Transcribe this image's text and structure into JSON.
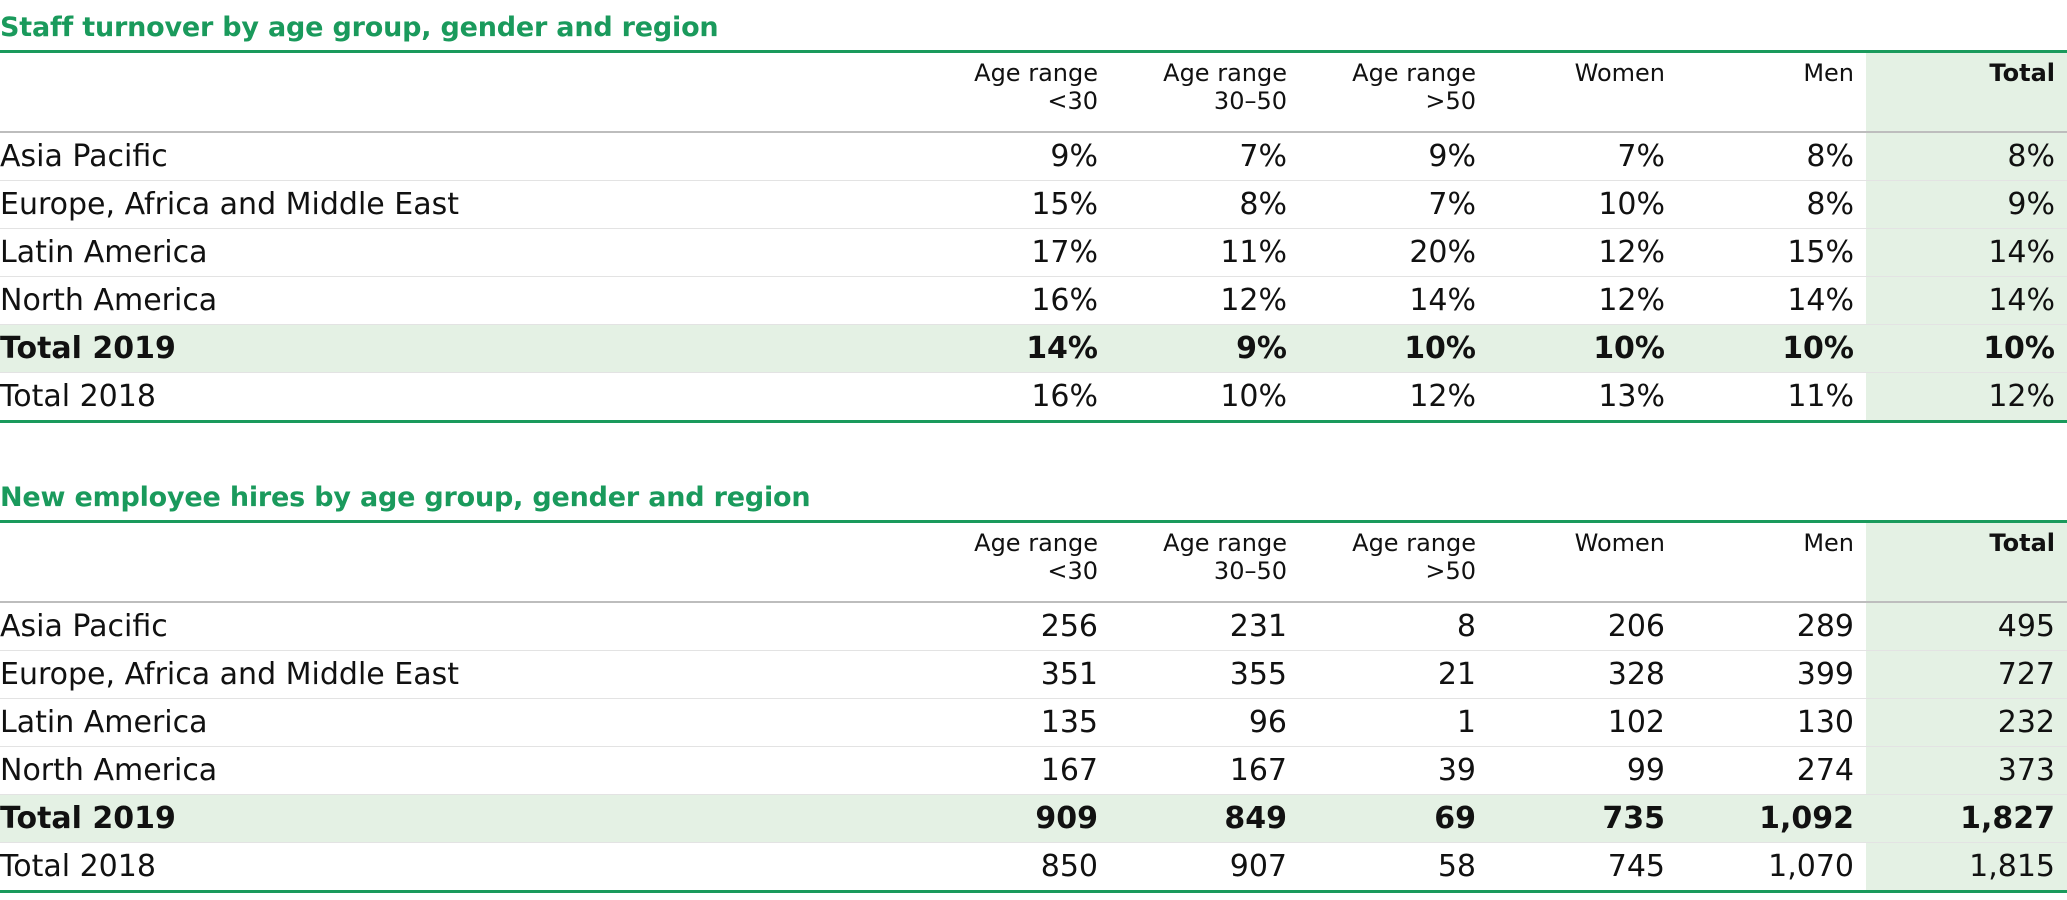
{
  "columns": {
    "label": "",
    "age_under_30": [
      "Age range",
      "<30"
    ],
    "age_30_50": [
      "Age range",
      "30–50"
    ],
    "age_over_50": [
      "Age range",
      ">50"
    ],
    "women": "Women",
    "men": "Men",
    "total": "Total"
  },
  "turnover": {
    "title": "Staff turnover by age group, gender and region",
    "rows": [
      {
        "label": "Asia Pacific",
        "values": [
          "9%",
          "7%",
          "9%",
          "7%",
          "8%",
          "8%"
        ]
      },
      {
        "label": "Europe, Africa and Middle East",
        "values": [
          "15%",
          "8%",
          "7%",
          "10%",
          "8%",
          "9%"
        ]
      },
      {
        "label": "Latin America",
        "values": [
          "17%",
          "11%",
          "20%",
          "12%",
          "15%",
          "14%"
        ]
      },
      {
        "label": "North America",
        "values": [
          "16%",
          "12%",
          "14%",
          "12%",
          "14%",
          "14%"
        ]
      },
      {
        "label": "Total 2019",
        "values": [
          "14%",
          "9%",
          "10%",
          "10%",
          "10%",
          "10%"
        ]
      },
      {
        "label": "Total 2018",
        "values": [
          "16%",
          "10%",
          "12%",
          "13%",
          "11%",
          "12%"
        ]
      }
    ]
  },
  "hires": {
    "title": "New employee hires by age group, gender and region",
    "rows": [
      {
        "label": "Asia Pacific",
        "values": [
          "256",
          "231",
          "8",
          "206",
          "289",
          "495"
        ]
      },
      {
        "label": "Europe, Africa and Middle East",
        "values": [
          "351",
          "355",
          "21",
          "328",
          "399",
          "727"
        ]
      },
      {
        "label": "Latin America",
        "values": [
          "135",
          "96",
          "1",
          "102",
          "130",
          "232"
        ]
      },
      {
        "label": "North America",
        "values": [
          "167",
          "167",
          "39",
          "99",
          "274",
          "373"
        ]
      },
      {
        "label": "Total 2019",
        "values": [
          "909",
          "849",
          "69",
          "735",
          "1,092",
          "1,827"
        ]
      },
      {
        "label": "Total 2018",
        "values": [
          "850",
          "907",
          "58",
          "745",
          "1,070",
          "1,815"
        ]
      }
    ]
  },
  "colors": {
    "accent": "#1a9a5c",
    "highlight": "#e4f1e4"
  }
}
